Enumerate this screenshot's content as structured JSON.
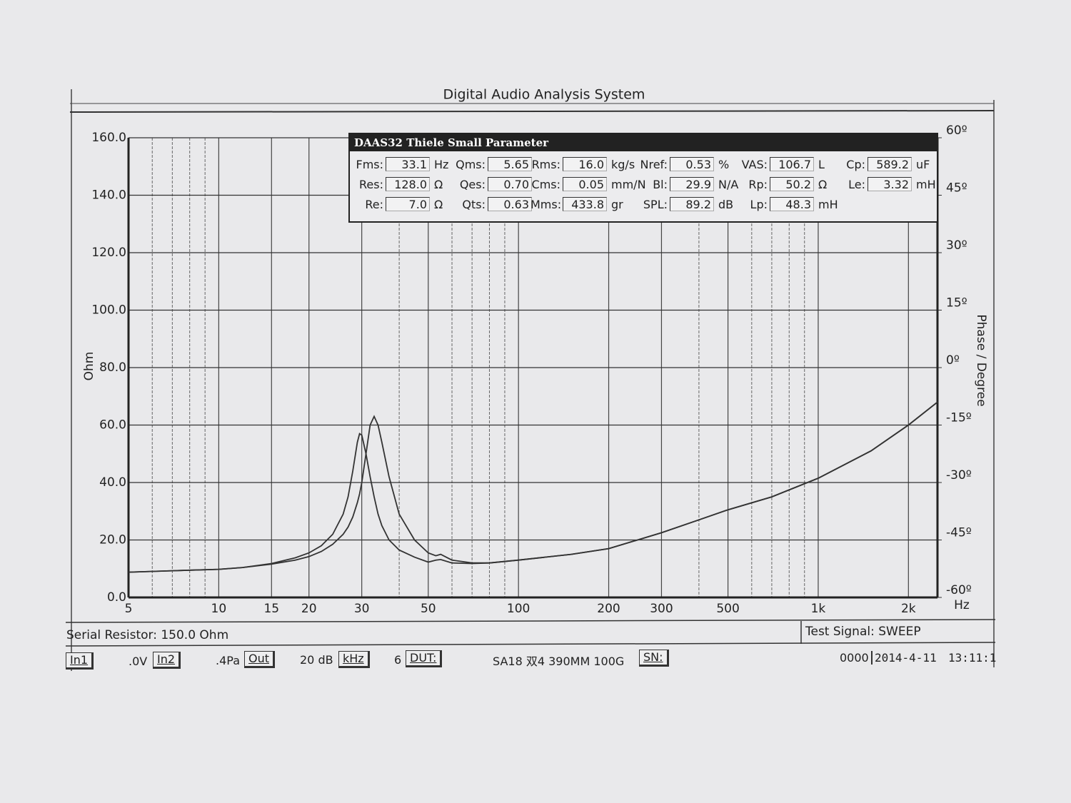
{
  "title": "Digital Audio Analysis System",
  "chart_data": {
    "type": "line",
    "y_label": "Ohm",
    "y2_label": "Phase / Degree",
    "x_unit": "Hz",
    "xscale": "log",
    "grid": true,
    "x": [
      5,
      7,
      10,
      12,
      15,
      18,
      20,
      22,
      24,
      26,
      27,
      28,
      29,
      29.5,
      30,
      31,
      32,
      33,
      34,
      35,
      37,
      40,
      45,
      50,
      53,
      55,
      60,
      70,
      80,
      100,
      150,
      200,
      300,
      400,
      500,
      700,
      1000,
      1500,
      2000,
      2500
    ],
    "series": [
      {
        "color": "#333333",
        "values": [
          8.8,
          9.3,
          9.8,
          10.4,
          11.8,
          13.8,
          15.5,
          18,
          22,
          29,
          35,
          44,
          54,
          57,
          56.5,
          50,
          42,
          35,
          29,
          25,
          20,
          16.5,
          14,
          12.3,
          13,
          13.2,
          12,
          11.8,
          12,
          13,
          15,
          17,
          22.5,
          27,
          30.5,
          35,
          41.5,
          51,
          60,
          68
        ]
      },
      {
        "color": "#333333",
        "values": [
          8.8,
          9.3,
          9.8,
          10.4,
          11.6,
          13,
          14.2,
          16,
          18.5,
          22,
          24.5,
          28,
          33,
          36,
          40,
          50,
          60,
          63,
          60,
          54,
          42,
          29,
          20,
          15.5,
          14.5,
          15,
          13,
          12,
          12,
          13,
          15,
          17,
          22.5,
          27,
          30.5,
          35,
          41.5,
          51,
          60,
          68
        ]
      }
    ],
    "xlim": [
      5,
      2500
    ],
    "xticks": [
      5,
      10,
      15,
      20,
      30,
      50,
      100,
      200,
      300,
      500,
      {
        "value": 1000,
        "label": "1k"
      },
      {
        "value": 2000,
        "label": "2k"
      }
    ],
    "x_minor_grid": [
      6,
      7,
      8,
      9,
      40,
      60,
      70,
      80,
      90,
      400,
      600,
      700,
      800,
      900
    ],
    "ylim": [
      0,
      160
    ],
    "yticks": [
      {
        "value": 0,
        "label": "0.0"
      },
      {
        "value": 20,
        "label": "20.0"
      },
      {
        "value": 40,
        "label": "40.0"
      },
      {
        "value": 60,
        "label": "60.0"
      },
      {
        "value": 80,
        "label": "80.0"
      },
      {
        "value": 100,
        "label": "100.0"
      },
      {
        "value": 120,
        "label": "120.0"
      },
      {
        "value": 140,
        "label": "140.0"
      },
      {
        "value": 160,
        "label": "160.0"
      }
    ],
    "y2lim": [
      -60,
      60
    ],
    "y2ticks": [
      {
        "value": -60,
        "label": "-60º"
      },
      {
        "value": -45,
        "label": "-45º"
      },
      {
        "value": -30,
        "label": "-30º"
      },
      {
        "value": -15,
        "label": "-15º"
      },
      {
        "value": 0,
        "label": "0º"
      },
      {
        "value": 15,
        "label": "15º"
      },
      {
        "value": 30,
        "label": "30º"
      },
      {
        "value": 45,
        "label": "45º"
      },
      {
        "value": 60,
        "label": "60º"
      }
    ]
  },
  "parameters": {
    "title": "DAAS32 Thiele Small Parameter",
    "rows": [
      [
        {
          "label": "Fms:",
          "value": "33.1",
          "unit": "Hz"
        },
        {
          "label": "Qms:",
          "value": "5.65"
        },
        {
          "label": "Rms:",
          "value": "16.0",
          "unit": "kg/s"
        },
        {
          "label": "Nref:",
          "value": "0.53",
          "unit": "%"
        },
        {
          "label": "VAS:",
          "value": "106.7",
          "unit": "L"
        },
        {
          "label": "Cp:",
          "value": "589.2",
          "unit": "uF"
        }
      ],
      [
        {
          "label": "Res:",
          "value": "128.0",
          "unit": "Ω"
        },
        {
          "label": "Qes:",
          "value": "0.70"
        },
        {
          "label": "Cms:",
          "value": "0.05",
          "unit": "mm/N"
        },
        {
          "label": "Bl:",
          "value": "29.9",
          "unit": "N/A"
        },
        {
          "label": "Rp:",
          "value": "50.2",
          "unit": "Ω"
        },
        {
          "label": "Le:",
          "value": "3.32",
          "unit": "mH"
        }
      ],
      [
        {
          "label": "Re:",
          "value": "7.0",
          "unit": "Ω"
        },
        {
          "label": "Qts:",
          "value": "0.63"
        },
        {
          "label": "Mms:",
          "value": "433.8",
          "unit": "gr"
        },
        {
          "label": "SPL:",
          "value": "89.2",
          "unit": "dB"
        },
        {
          "label": "Lp:",
          "value": "48.3",
          "unit": "mH"
        }
      ]
    ]
  },
  "footer": {
    "serial_resistor": "Serial Resistor: 150.0 Ohm",
    "test_signal": "Test Signal: SWEEP",
    "in1": "In1",
    "in1_level": ".0V",
    "in2": "In2",
    "in2_level": ".4Pa",
    "out": "Out",
    "out_level": "20 dB",
    "freq": "kHz",
    "dut_num": "6",
    "dut": "DUT:",
    "dut_name": "SA18 双4 390MM 100G",
    "sn": "SN:",
    "sn_value": "0000",
    "date": "2014-4-11",
    "time": "13:11:1"
  }
}
